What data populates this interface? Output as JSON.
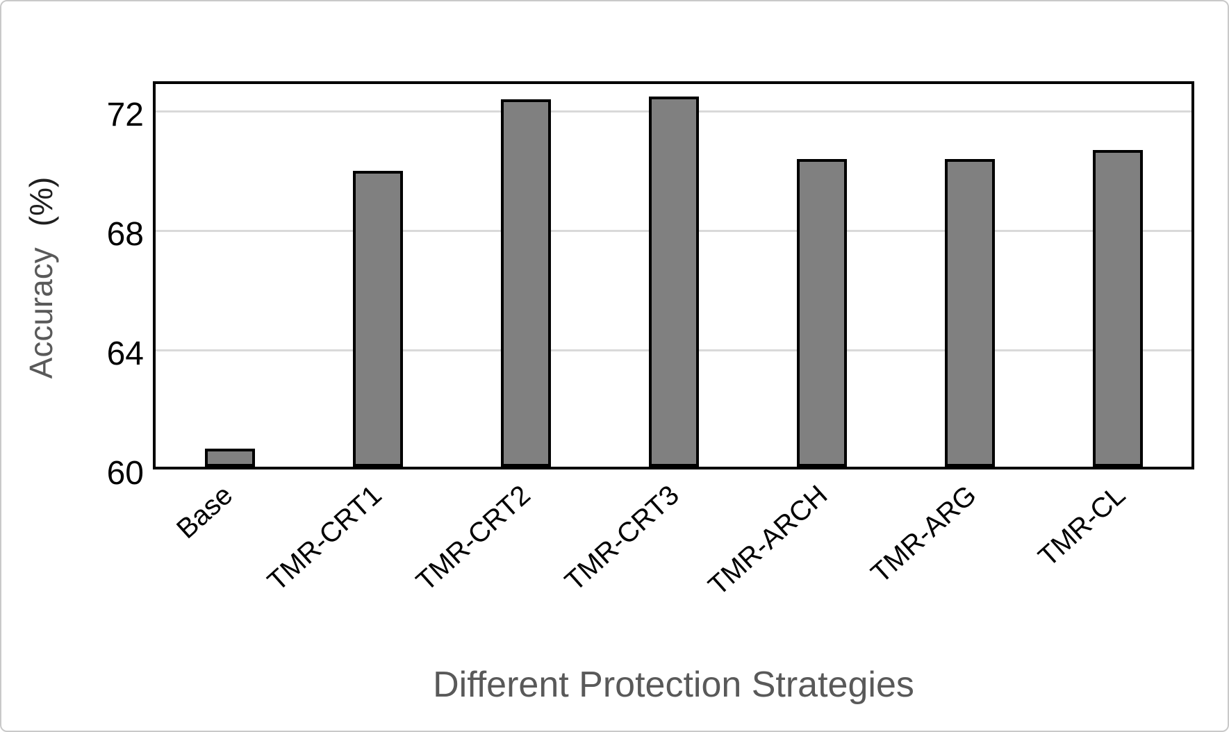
{
  "chart_data": {
    "type": "bar",
    "title": "",
    "categories": [
      "Base",
      "TMR-CRT1",
      "TMR-CRT2",
      "TMR-CRT3",
      "TMR-ARCH",
      "TMR-ARG",
      "TMR-CL"
    ],
    "values": [
      60.6,
      69.9,
      72.3,
      72.4,
      70.3,
      70.3,
      70.6
    ],
    "xlabel": "Different Protection Strategies",
    "ylabel": "Accuracy (%)",
    "ylabel_word": "Accuracy",
    "ylabel_unit": "(%)",
    "yticks": [
      60,
      64,
      68,
      72
    ],
    "ylim": [
      60,
      73
    ],
    "grid": "horizontal",
    "legend": "none",
    "colors": {
      "bar_fill": "#808080",
      "bar_border": "#000000",
      "gridline": "#d9d9d9",
      "plot_border": "#000000",
      "tick_label": "#000000",
      "axis_title": "#595959",
      "unit_label": "#1f1f1f",
      "card_border": "#c9c9c9",
      "background": "#ffffff"
    }
  }
}
